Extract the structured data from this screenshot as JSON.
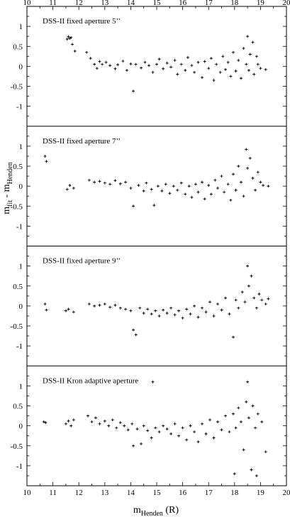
{
  "chart_data": {
    "type": "scatter",
    "xlabel": "m",
    "xlabel_sub": "Henden",
    "xlabel_suffix": " (R)",
    "ylabel": "m",
    "ylabel_sub1": "fit",
    "ylabel_mid": " - m",
    "ylabel_sub2": "Henden",
    "xlim": [
      10,
      20
    ],
    "ylim": [
      -1.5,
      1.5
    ],
    "x_ticks": [
      "10",
      "11",
      "12",
      "13",
      "14",
      "15",
      "16",
      "17",
      "18",
      "19",
      "20"
    ],
    "y_ticks": [
      "1",
      "0.5",
      "0",
      "-0.5",
      "-1"
    ],
    "y_tick_values": [
      1,
      0.5,
      0,
      -0.5,
      -1
    ],
    "marker": "+",
    "panels": [
      {
        "title": "DSS-II fixed aperture 5’’",
        "points": [
          [
            11.55,
            0.68
          ],
          [
            11.6,
            0.74
          ],
          [
            11.65,
            0.7
          ],
          [
            11.7,
            0.72
          ],
          [
            11.75,
            0.55
          ],
          [
            11.85,
            0.38
          ],
          [
            12.3,
            0.35
          ],
          [
            12.45,
            0.2
          ],
          [
            12.6,
            0.05
          ],
          [
            12.7,
            -0.05
          ],
          [
            12.8,
            0.12
          ],
          [
            12.9,
            0.05
          ],
          [
            13.05,
            0.1
          ],
          [
            13.2,
            0.02
          ],
          [
            13.4,
            -0.06
          ],
          [
            13.5,
            0.04
          ],
          [
            13.7,
            0.13
          ],
          [
            13.85,
            -0.1
          ],
          [
            14.0,
            0.06
          ],
          [
            14.1,
            -0.62
          ],
          [
            14.2,
            0.05
          ],
          [
            14.4,
            -0.04
          ],
          [
            14.55,
            0.1
          ],
          [
            14.7,
            0.02
          ],
          [
            14.85,
            -0.15
          ],
          [
            15.0,
            0.05
          ],
          [
            15.1,
            0.18
          ],
          [
            15.25,
            -0.06
          ],
          [
            15.4,
            0.08
          ],
          [
            15.55,
            -0.02
          ],
          [
            15.7,
            0.15
          ],
          [
            15.8,
            -0.2
          ],
          [
            15.95,
            0.05
          ],
          [
            16.1,
            -0.1
          ],
          [
            16.2,
            0.22
          ],
          [
            16.35,
            0.02
          ],
          [
            16.45,
            -0.15
          ],
          [
            16.6,
            0.1
          ],
          [
            16.75,
            -0.28
          ],
          [
            16.85,
            0.12
          ],
          [
            17.0,
            -0.05
          ],
          [
            17.1,
            0.2
          ],
          [
            17.2,
            -0.35
          ],
          [
            17.3,
            0.05
          ],
          [
            17.45,
            -0.15
          ],
          [
            17.55,
            0.25
          ],
          [
            17.65,
            -0.08
          ],
          [
            17.75,
            0.1
          ],
          [
            17.85,
            -0.25
          ],
          [
            17.95,
            0.35
          ],
          [
            18.05,
            -0.12
          ],
          [
            18.15,
            0.15
          ],
          [
            18.25,
            -0.3
          ],
          [
            18.35,
            0.45
          ],
          [
            18.45,
            0.05
          ],
          [
            18.5,
            0.75
          ],
          [
            18.55,
            -0.1
          ],
          [
            18.6,
            0.3
          ],
          [
            18.7,
            0.6
          ],
          [
            18.75,
            -0.2
          ],
          [
            18.85,
            0.25
          ],
          [
            18.9,
            0.05
          ],
          [
            19.0,
            -0.05
          ],
          [
            19.2,
            -0.08
          ]
        ]
      },
      {
        "title": "DSS-II fixed aperture 7’’",
        "points": [
          [
            10.7,
            0.75
          ],
          [
            10.75,
            0.62
          ],
          [
            11.55,
            -0.08
          ],
          [
            11.65,
            0.02
          ],
          [
            11.8,
            -0.05
          ],
          [
            12.4,
            0.15
          ],
          [
            12.6,
            0.1
          ],
          [
            12.8,
            0.12
          ],
          [
            13.0,
            0.08
          ],
          [
            13.2,
            0.05
          ],
          [
            13.4,
            0.14
          ],
          [
            13.6,
            0.06
          ],
          [
            13.8,
            0.1
          ],
          [
            14.0,
            -0.05
          ],
          [
            14.1,
            -0.5
          ],
          [
            14.3,
            0.02
          ],
          [
            14.5,
            -0.12
          ],
          [
            14.6,
            0.08
          ],
          [
            14.8,
            -0.08
          ],
          [
            14.9,
            -0.48
          ],
          [
            15.05,
            0.0
          ],
          [
            15.2,
            -0.12
          ],
          [
            15.35,
            0.05
          ],
          [
            15.5,
            -0.18
          ],
          [
            15.65,
            0.0
          ],
          [
            15.8,
            -0.1
          ],
          [
            15.95,
            0.08
          ],
          [
            16.1,
            -0.2
          ],
          [
            16.25,
            0.0
          ],
          [
            16.35,
            -0.28
          ],
          [
            16.5,
            0.05
          ],
          [
            16.6,
            -0.15
          ],
          [
            16.75,
            0.1
          ],
          [
            16.85,
            -0.32
          ],
          [
            17.0,
            0.02
          ],
          [
            17.1,
            -0.2
          ],
          [
            17.25,
            0.15
          ],
          [
            17.35,
            -0.05
          ],
          [
            17.5,
            0.25
          ],
          [
            17.6,
            -0.15
          ],
          [
            17.75,
            0.05
          ],
          [
            17.85,
            -0.35
          ],
          [
            17.95,
            0.3
          ],
          [
            18.05,
            -0.1
          ],
          [
            18.15,
            0.5
          ],
          [
            18.25,
            0.1
          ],
          [
            18.35,
            -0.25
          ],
          [
            18.45,
            0.92
          ],
          [
            18.5,
            0.45
          ],
          [
            18.6,
            0.7
          ],
          [
            18.7,
            0.2
          ],
          [
            18.8,
            -0.1
          ],
          [
            18.9,
            0.35
          ],
          [
            19.0,
            0.1
          ],
          [
            19.1,
            0.02
          ],
          [
            19.3,
            0.0
          ]
        ]
      },
      {
        "title": "DSS-II fixed aperture 9’’",
        "points": [
          [
            10.7,
            0.05
          ],
          [
            10.75,
            -0.1
          ],
          [
            11.5,
            -0.12
          ],
          [
            11.6,
            -0.08
          ],
          [
            11.8,
            -0.15
          ],
          [
            12.4,
            0.05
          ],
          [
            12.6,
            0.0
          ],
          [
            12.8,
            0.02
          ],
          [
            13.0,
            0.05
          ],
          [
            13.2,
            -0.03
          ],
          [
            13.4,
            0.02
          ],
          [
            13.6,
            -0.05
          ],
          [
            13.8,
            -0.08
          ],
          [
            14.0,
            -0.12
          ],
          [
            14.1,
            -0.6
          ],
          [
            14.2,
            -0.72
          ],
          [
            14.35,
            -0.05
          ],
          [
            14.5,
            -0.18
          ],
          [
            14.65,
            -0.08
          ],
          [
            14.8,
            -0.2
          ],
          [
            14.95,
            -0.12
          ],
          [
            15.1,
            -0.25
          ],
          [
            15.25,
            -0.1
          ],
          [
            15.4,
            -0.18
          ],
          [
            15.55,
            -0.05
          ],
          [
            15.7,
            -0.22
          ],
          [
            15.85,
            -0.12
          ],
          [
            16.0,
            -0.3
          ],
          [
            16.15,
            -0.08
          ],
          [
            16.3,
            -0.2
          ],
          [
            16.45,
            0.0
          ],
          [
            16.6,
            -0.28
          ],
          [
            16.75,
            -0.05
          ],
          [
            16.9,
            -0.15
          ],
          [
            17.05,
            0.1
          ],
          [
            17.2,
            -0.25
          ],
          [
            17.35,
            0.05
          ],
          [
            17.5,
            -0.1
          ],
          [
            17.65,
            0.2
          ],
          [
            17.8,
            -0.2
          ],
          [
            17.95,
            -0.78
          ],
          [
            18.05,
            0.15
          ],
          [
            18.15,
            -0.05
          ],
          [
            18.3,
            0.35
          ],
          [
            18.4,
            0.1
          ],
          [
            18.5,
            1.0
          ],
          [
            18.55,
            0.5
          ],
          [
            18.65,
            0.75
          ],
          [
            18.75,
            0.2
          ],
          [
            18.85,
            -0.05
          ],
          [
            18.95,
            0.3
          ],
          [
            19.05,
            0.15
          ],
          [
            19.2,
            0.05
          ],
          [
            19.3,
            0.18
          ]
        ]
      },
      {
        "title": "DSS-II Kron adaptive aperture",
        "points": [
          [
            10.65,
            0.1
          ],
          [
            10.72,
            0.08
          ],
          [
            11.5,
            0.05
          ],
          [
            11.6,
            0.12
          ],
          [
            11.7,
            0.0
          ],
          [
            11.8,
            0.15
          ],
          [
            12.35,
            0.25
          ],
          [
            12.5,
            0.1
          ],
          [
            12.65,
            0.2
          ],
          [
            12.8,
            0.05
          ],
          [
            13.0,
            0.12
          ],
          [
            13.15,
            0.0
          ],
          [
            13.3,
            0.15
          ],
          [
            13.45,
            -0.05
          ],
          [
            13.6,
            0.08
          ],
          [
            13.75,
            0.0
          ],
          [
            13.9,
            -0.1
          ],
          [
            14.05,
            0.05
          ],
          [
            14.1,
            -0.5
          ],
          [
            14.25,
            -0.08
          ],
          [
            14.4,
            -0.45
          ],
          [
            14.5,
            0.0
          ],
          [
            14.65,
            -0.12
          ],
          [
            14.8,
            -0.3
          ],
          [
            14.85,
            1.1
          ],
          [
            14.95,
            -0.05
          ],
          [
            15.1,
            -0.15
          ],
          [
            15.25,
            0.0
          ],
          [
            15.4,
            -0.08
          ],
          [
            15.55,
            -0.2
          ],
          [
            15.7,
            0.05
          ],
          [
            15.85,
            -0.25
          ],
          [
            16.0,
            -0.05
          ],
          [
            16.15,
            -0.35
          ],
          [
            16.3,
            0.0
          ],
          [
            16.45,
            -0.15
          ],
          [
            16.6,
            -0.4
          ],
          [
            16.75,
            0.05
          ],
          [
            16.9,
            -0.2
          ],
          [
            17.05,
            0.15
          ],
          [
            17.2,
            -0.3
          ],
          [
            17.35,
            0.1
          ],
          [
            17.5,
            -0.1
          ],
          [
            17.65,
            0.25
          ],
          [
            17.8,
            -0.15
          ],
          [
            17.95,
            0.3
          ],
          [
            18.0,
            -1.2
          ],
          [
            18.05,
            -0.05
          ],
          [
            18.15,
            0.45
          ],
          [
            18.25,
            0.1
          ],
          [
            18.35,
            -0.6
          ],
          [
            18.45,
            0.6
          ],
          [
            18.5,
            1.1
          ],
          [
            18.55,
            0.2
          ],
          [
            18.65,
            -1.1
          ],
          [
            18.7,
            0.5
          ],
          [
            18.8,
            -0.05
          ],
          [
            18.85,
            -1.25
          ],
          [
            18.9,
            0.3
          ],
          [
            19.05,
            0.1
          ],
          [
            19.2,
            -0.65
          ]
        ]
      }
    ]
  }
}
